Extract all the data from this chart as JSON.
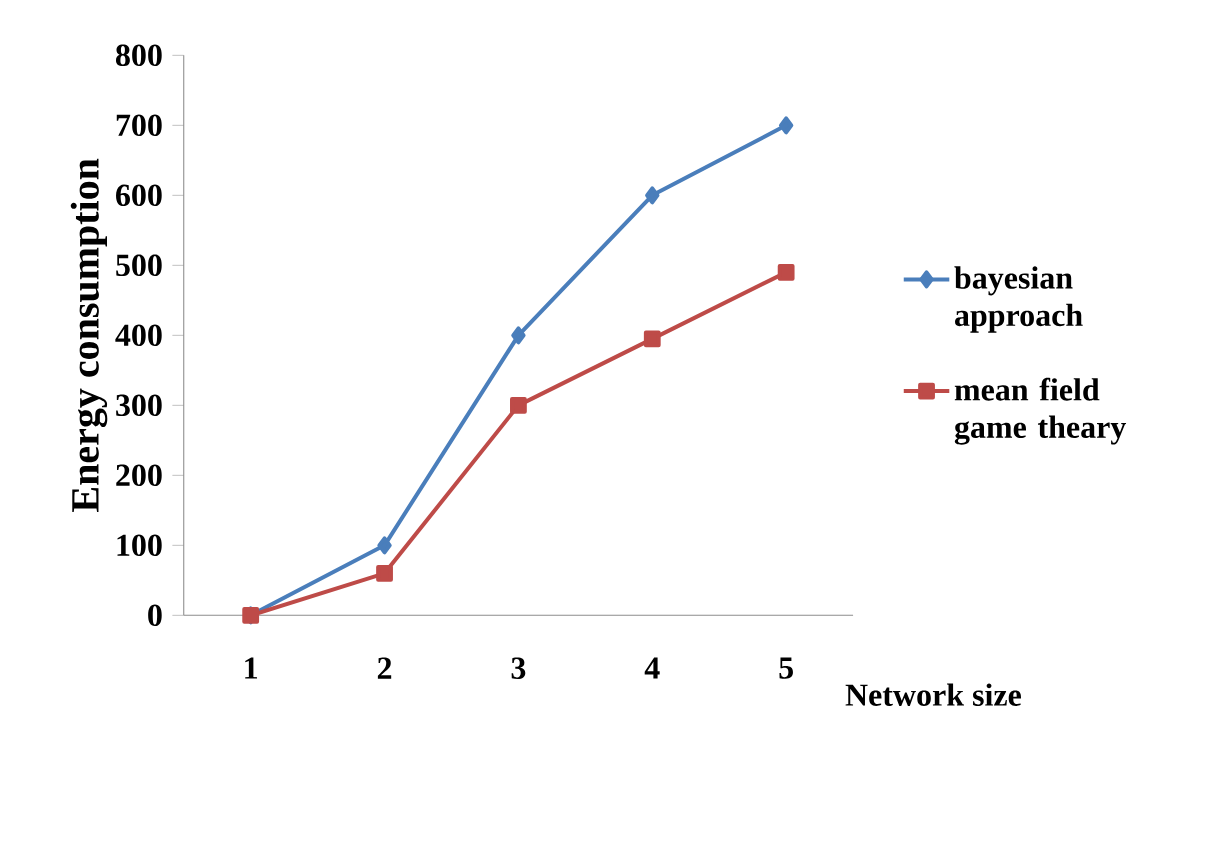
{
  "chart_data": {
    "type": "line",
    "xlabel": "Network size",
    "ylabel": "Energy consumption",
    "categories": [
      "1",
      "2",
      "3",
      "4",
      "5"
    ],
    "series": [
      {
        "name": "bayesian approach",
        "color": "#4a7ebb",
        "marker": "diamond",
        "values": [
          0,
          100,
          400,
          600,
          700
        ]
      },
      {
        "name": "mean field game theary",
        "color": "#be4b48",
        "marker": "square",
        "values": [
          0,
          60,
          300,
          395,
          490
        ]
      }
    ],
    "ylim": [
      0,
      800
    ],
    "yticks": [
      0,
      100,
      200,
      300,
      400,
      500,
      600,
      700,
      800
    ],
    "grid": false,
    "legend": "right",
    "line_style": "solid"
  }
}
